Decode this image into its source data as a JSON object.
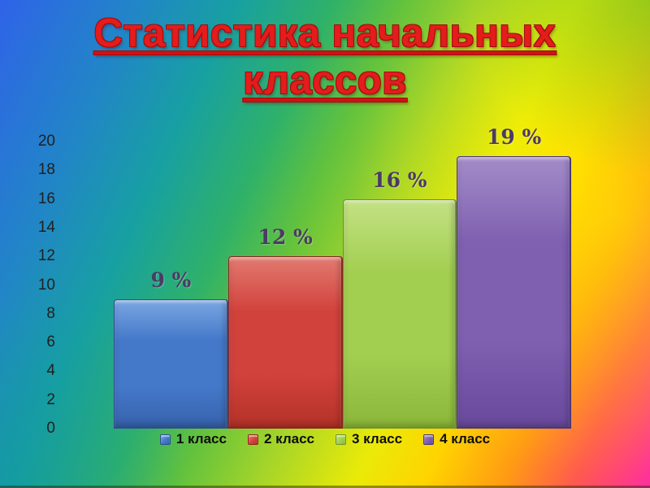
{
  "slide": {
    "title_line1": "Статистика начальных",
    "title_line2": "классов",
    "title_color": "#e41c1c"
  },
  "chart_data": {
    "type": "bar",
    "title": "Статистика начальных классов",
    "categories": [
      "1 класс",
      "2 класс",
      "3 класс",
      "4 класс"
    ],
    "values": [
      9,
      12,
      16,
      19
    ],
    "data_labels": [
      "9 %",
      "12 %",
      "16 %",
      "19 %"
    ],
    "xlabel": "",
    "ylabel": "",
    "ylim": [
      0,
      20
    ],
    "yticks": [
      0,
      2,
      4,
      6,
      8,
      10,
      12,
      14,
      16,
      18,
      20
    ],
    "grid": false,
    "legend_position": "bottom",
    "label_color": "#4c3a66",
    "tick_color": "#1f1f1f",
    "legend_text_color": "#0d0d0d",
    "series_colors": [
      {
        "name": "1 класс",
        "base": "#4478c9",
        "light": "#7aa6e2",
        "dark": "#3763ad",
        "border": "#2d4f8c"
      },
      {
        "name": "2 класс",
        "base": "#d2423c",
        "light": "#e17a70",
        "dark": "#b53229",
        "border": "#8f241d"
      },
      {
        "name": "3 класс",
        "base": "#a2cf50",
        "light": "#c3e184",
        "dark": "#8bb83a",
        "border": "#6d942c"
      },
      {
        "name": "4 класс",
        "base": "#7e5fb0",
        "light": "#a38cc9",
        "dark": "#69499c",
        "border": "#4e3579"
      }
    ]
  },
  "background": {
    "top_left": "#2f63e8",
    "teal": "#17a0a2",
    "green": "#63c23d",
    "yellow": "#eaea08",
    "orange": "#ff9b13",
    "bottom_right_pink": "#ff2f9e"
  }
}
